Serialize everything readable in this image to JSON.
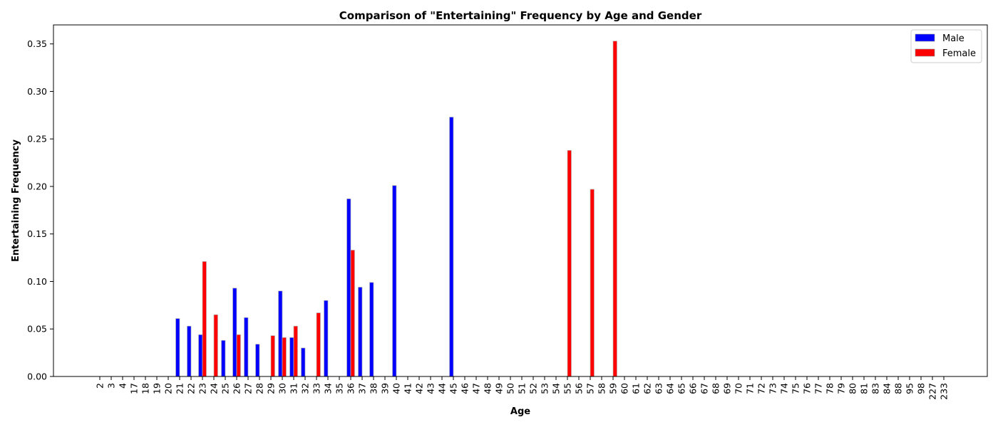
{
  "chart_data": {
    "type": "bar",
    "title": "Comparison of \"Entertaining\" Frequency by Age and Gender",
    "xlabel": "Age",
    "ylabel": "Entertaining Frequency",
    "ylim": [
      0,
      0.37
    ],
    "yticks": [
      0.0,
      0.05,
      0.1,
      0.15,
      0.2,
      0.25,
      0.3,
      0.35
    ],
    "ytick_labels": [
      "0.00",
      "0.05",
      "0.10",
      "0.15",
      "0.20",
      "0.25",
      "0.30",
      "0.35"
    ],
    "grid": false,
    "legend_position": "top-right",
    "categories": [
      "2",
      "3",
      "4",
      "17",
      "18",
      "19",
      "20",
      "21",
      "22",
      "23",
      "24",
      "25",
      "26",
      "27",
      "28",
      "29",
      "30",
      "31",
      "32",
      "33",
      "34",
      "35",
      "36",
      "37",
      "38",
      "39",
      "40",
      "41",
      "42",
      "43",
      "44",
      "45",
      "46",
      "47",
      "48",
      "49",
      "50",
      "51",
      "52",
      "53",
      "54",
      "55",
      "56",
      "57",
      "58",
      "59",
      "60",
      "61",
      "62",
      "63",
      "64",
      "65",
      "66",
      "67",
      "68",
      "69",
      "70",
      "71",
      "72",
      "73",
      "74",
      "75",
      "76",
      "77",
      "78",
      "79",
      "80",
      "81",
      "83",
      "84",
      "88",
      "95",
      "98",
      "227",
      "233"
    ],
    "series": [
      {
        "name": "Male",
        "color": "#0000ff",
        "values": [
          0,
          0,
          0,
          0,
          0,
          0,
          0,
          0.061,
          0.053,
          0.044,
          0,
          0.038,
          0.093,
          0.062,
          0.034,
          0,
          0.09,
          0.041,
          0.03,
          0,
          0.08,
          0,
          0.187,
          0.094,
          0.099,
          0,
          0.201,
          0,
          0,
          0,
          0,
          0.273,
          0,
          0,
          0,
          0,
          0,
          0,
          0,
          0,
          0,
          0,
          0,
          0,
          0,
          0,
          0,
          0,
          0,
          0,
          0,
          0,
          0,
          0,
          0,
          0,
          0,
          0,
          0,
          0,
          0,
          0,
          0,
          0,
          0,
          0,
          0,
          0,
          0,
          0,
          0,
          0,
          0,
          0,
          0
        ]
      },
      {
        "name": "Female",
        "color": "#ff0000",
        "values": [
          0,
          0,
          0,
          0,
          0,
          0,
          0,
          0,
          0,
          0.121,
          0.065,
          0,
          0.044,
          0,
          0,
          0.043,
          0.041,
          0.053,
          0,
          0.067,
          0,
          0,
          0.133,
          0,
          0,
          0,
          0,
          0,
          0,
          0,
          0,
          0,
          0,
          0,
          0,
          0,
          0,
          0,
          0,
          0,
          0,
          0.238,
          0,
          0.197,
          0,
          0.353,
          0,
          0,
          0,
          0,
          0,
          0,
          0,
          0,
          0,
          0,
          0,
          0,
          0,
          0,
          0,
          0,
          0,
          0,
          0,
          0,
          0,
          0,
          0,
          0,
          0,
          0,
          0,
          0,
          0
        ]
      }
    ]
  }
}
